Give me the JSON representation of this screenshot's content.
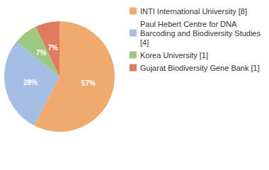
{
  "chart_data": {
    "type": "pie",
    "categories": [
      "INTI International University [8]",
      "Paul Hebert Centre for DNA Barcoding and Biodiversity Studies [4]",
      "Korea University [1]",
      "Gujarat Biodiversity Gene Bank [1]"
    ],
    "values": [
      57,
      28,
      7,
      7
    ],
    "value_labels": [
      "57%",
      "28%",
      "7%",
      "7%"
    ],
    "colors": [
      "#F0AA6E",
      "#A3BEE2",
      "#9CC97F",
      "#E07B60"
    ],
    "data_labels": true,
    "legend": "top-right"
  }
}
